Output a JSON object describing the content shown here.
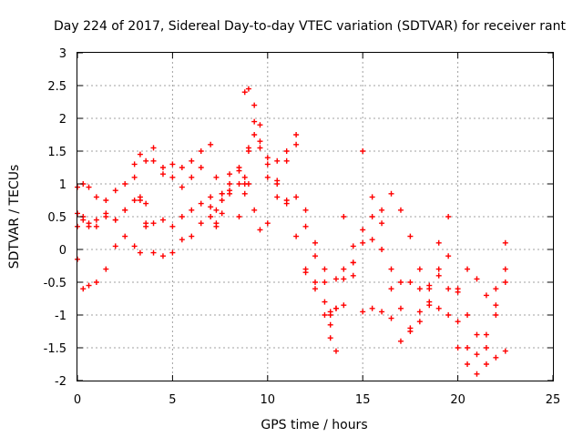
{
  "chart_data": {
    "type": "scatter",
    "title": "Day 224 of 2017, Sidereal Day-to-day VTEC variation (SDTVAR) for receiver rant",
    "xlabel": "GPS time / hours",
    "ylabel": "SDTVAR / TECUs",
    "xlim": [
      0,
      25
    ],
    "ylim": [
      -2,
      3
    ],
    "xticks": [
      0,
      5,
      10,
      15,
      20,
      25
    ],
    "yticks": [
      -2,
      -1.5,
      -1,
      -0.5,
      0,
      0.5,
      1,
      1.5,
      2,
      2.5,
      3
    ],
    "grid": true,
    "legend": "none",
    "marker": "plus",
    "color": "#ff0000",
    "series": [
      {
        "x": [
          0.0,
          0.3,
          0.6,
          1.0,
          1.5,
          2.0,
          2.5,
          3.0,
          3.3,
          3.6,
          4.0,
          4.5,
          5.0,
          5.5,
          6.0,
          6.5,
          7.0,
          7.3,
          7.6,
          8.0,
          8.5,
          8.8,
          9.0,
          9.3,
          9.6,
          10.0,
          10.5,
          11.0,
          11.5,
          12.0,
          12.5,
          13.0,
          13.3,
          13.6,
          14.0,
          14.5,
          15.0,
          15.5,
          16.0,
          16.5,
          17.0,
          17.5,
          18.0,
          18.5,
          19.0,
          19.5,
          20.0,
          20.5,
          21.0,
          21.5,
          22.0,
          22.5
        ],
        "y": [
          -0.15,
          -0.6,
          -0.55,
          -0.5,
          -0.3,
          0.05,
          0.6,
          1.3,
          1.45,
          1.35,
          1.55,
          1.15,
          1.1,
          1.25,
          1.35,
          1.5,
          1.6,
          1.1,
          0.85,
          1.0,
          1.2,
          1.1,
          1.5,
          1.95,
          1.55,
          1.1,
          1.35,
          1.5,
          1.75,
          0.35,
          0.1,
          -0.5,
          -0.95,
          -0.45,
          -0.3,
          -0.2,
          0.3,
          0.5,
          0.4,
          0.85,
          0.6,
          0.2,
          -0.3,
          -0.55,
          -0.4,
          -0.1,
          -0.6,
          -1.0,
          -1.3,
          -1.5,
          -1.0,
          -0.5
        ]
      },
      {
        "x": [
          0.0,
          0.3,
          0.6,
          1.0,
          1.5,
          2.0,
          2.5,
          3.0,
          3.3,
          3.6,
          4.0,
          4.5,
          5.0,
          5.5,
          6.0,
          6.5,
          7.0,
          7.3,
          7.6,
          8.0,
          8.5,
          8.8,
          9.0,
          9.3,
          9.6,
          10.0,
          10.5,
          11.0,
          11.5,
          12.0,
          12.5,
          13.0,
          13.3,
          13.6,
          14.0,
          14.5,
          15.0,
          15.5,
          16.0,
          16.5,
          17.0,
          17.5,
          18.0,
          18.5,
          19.0,
          19.5,
          20.0,
          20.5,
          21.0,
          21.5,
          22.0,
          22.5
        ],
        "y": [
          0.95,
          1.0,
          0.95,
          0.8,
          0.75,
          0.9,
          1.0,
          1.1,
          0.75,
          0.7,
          1.35,
          1.25,
          1.3,
          0.95,
          1.1,
          1.25,
          0.5,
          0.35,
          0.75,
          1.15,
          1.25,
          2.4,
          2.45,
          2.2,
          1.9,
          1.4,
          1.0,
          1.35,
          1.6,
          0.6,
          -0.1,
          -0.3,
          -1.0,
          -0.9,
          0.5,
          0.05,
          -0.95,
          -0.9,
          -0.95,
          -1.05,
          -0.5,
          -0.5,
          -0.6,
          -0.85,
          0.1,
          0.5,
          -0.65,
          -0.3,
          -0.45,
          -0.7,
          -0.85,
          0.1
        ]
      },
      {
        "x": [
          0.0,
          0.3,
          0.6,
          1.0,
          1.5,
          2.0,
          2.5,
          3.0,
          3.3,
          3.6,
          4.0,
          4.5,
          5.0,
          5.5,
          6.0,
          6.5,
          7.0,
          7.3,
          7.6,
          8.0,
          8.5,
          8.8,
          9.0,
          9.3,
          9.6,
          10.0,
          10.5,
          11.0,
          11.5,
          12.0,
          12.5,
          13.0,
          13.3,
          13.6,
          14.0,
          14.5,
          15.0,
          15.5,
          16.0,
          16.5,
          17.0,
          17.5,
          18.0,
          18.5,
          19.0,
          19.5,
          20.0,
          20.5,
          21.0,
          21.5,
          22.0,
          22.5
        ],
        "y": [
          0.55,
          0.5,
          0.4,
          0.35,
          0.5,
          0.45,
          0.2,
          0.05,
          -0.05,
          0.35,
          0.4,
          0.45,
          0.35,
          0.5,
          0.6,
          0.7,
          0.65,
          0.4,
          0.55,
          0.85,
          1.0,
          0.85,
          1.55,
          1.75,
          1.65,
          1.3,
          1.05,
          0.75,
          0.8,
          -0.3,
          -0.6,
          -0.8,
          -1.35,
          -1.55,
          -0.85,
          -0.4,
          1.5,
          0.8,
          0.6,
          -0.3,
          -0.9,
          -1.2,
          -1.1,
          -0.8,
          -0.3,
          -0.6,
          -1.5,
          -1.75,
          -1.6,
          -1.75,
          -1.65,
          -1.55
        ]
      },
      {
        "x": [
          0.0,
          0.3,
          0.6,
          1.0,
          1.5,
          2.0,
          2.5,
          3.0,
          3.3,
          3.6,
          4.0,
          4.5,
          5.0,
          5.5,
          6.0,
          6.5,
          7.0,
          7.3,
          7.6,
          8.0,
          8.5,
          8.8,
          9.0,
          9.3,
          9.6,
          10.0,
          10.5,
          11.0,
          11.5,
          12.0,
          12.5,
          13.0,
          13.3,
          13.6,
          14.0,
          14.5,
          15.0,
          15.5,
          16.0,
          16.5,
          17.0,
          17.5,
          18.0,
          18.5,
          19.0,
          19.5,
          20.0,
          20.5,
          21.0,
          21.5,
          22.0,
          22.5
        ],
        "y": [
          0.35,
          0.45,
          0.35,
          0.45,
          0.55,
          0.45,
          0.6,
          0.75,
          0.8,
          0.4,
          -0.05,
          -0.1,
          -0.05,
          0.15,
          0.2,
          0.4,
          0.8,
          0.6,
          0.85,
          0.9,
          0.5,
          1.0,
          1.0,
          0.6,
          0.3,
          0.4,
          0.8,
          0.7,
          0.2,
          -0.35,
          -0.5,
          -1.0,
          -1.15,
          -0.9,
          -0.45,
          -0.2,
          0.1,
          0.15,
          0.0,
          -0.6,
          -1.4,
          -1.25,
          -0.95,
          -0.6,
          -0.9,
          -1.0,
          -1.1,
          -1.5,
          -1.9,
          -1.3,
          -0.6,
          -0.3
        ]
      }
    ]
  }
}
